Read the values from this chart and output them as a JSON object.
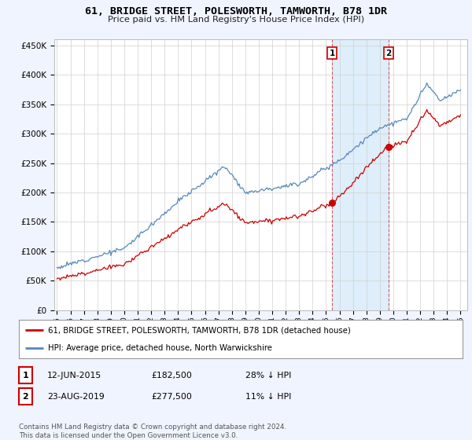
{
  "title": "61, BRIDGE STREET, POLESWORTH, TAMWORTH, B78 1DR",
  "subtitle": "Price paid vs. HM Land Registry's House Price Index (HPI)",
  "legend_label_red": "61, BRIDGE STREET, POLESWORTH, TAMWORTH, B78 1DR (detached house)",
  "legend_label_blue": "HPI: Average price, detached house, North Warwickshire",
  "annotation1_label": "1",
  "annotation1_date": "12-JUN-2015",
  "annotation1_price": "£182,500",
  "annotation1_hpi": "28% ↓ HPI",
  "annotation2_label": "2",
  "annotation2_date": "23-AUG-2019",
  "annotation2_price": "£277,500",
  "annotation2_hpi": "11% ↓ HPI",
  "footer": "Contains HM Land Registry data © Crown copyright and database right 2024.\nThis data is licensed under the Open Government Licence v3.0.",
  "red_color": "#cc0000",
  "blue_color": "#5588bb",
  "blue_shade_color": "#d0e8f8",
  "background_color": "#f0f4ff",
  "plot_bg_color": "#ffffff",
  "ylim": [
    0,
    460000
  ],
  "yticks": [
    0,
    50000,
    100000,
    150000,
    200000,
    250000,
    300000,
    350000,
    400000,
    450000
  ],
  "sale1_year": 2015.45,
  "sale1_value": 182500,
  "sale2_year": 2019.65,
  "sale2_value": 277500
}
